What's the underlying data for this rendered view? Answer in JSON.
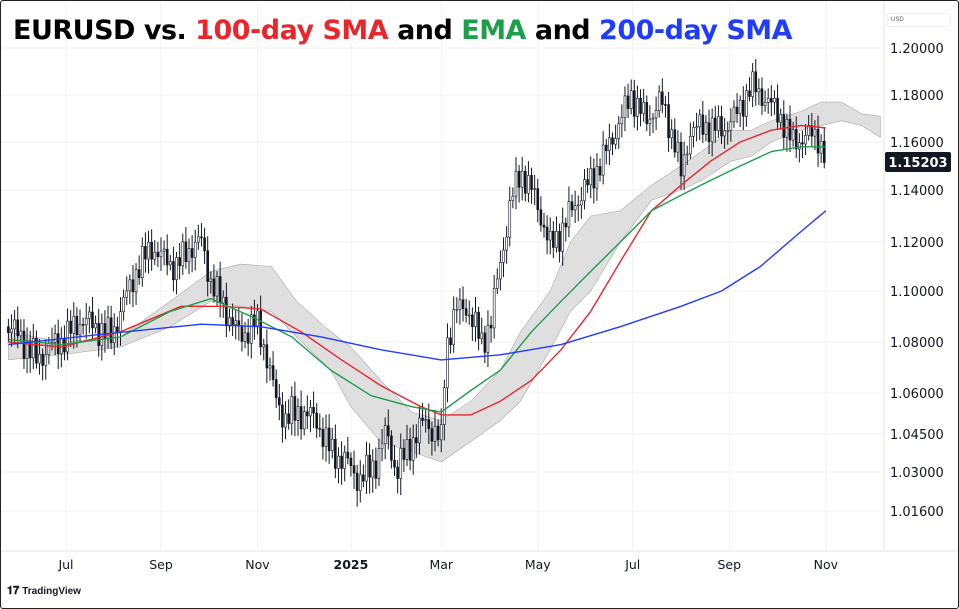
{
  "title": {
    "symbol": "EURUSD vs. ",
    "sma100": "100-day SMA",
    "and1": " and ",
    "ema": "EMA",
    "and2": " and ",
    "sma200": "200-day SMA"
  },
  "colors": {
    "sma100": "#e8262b",
    "ema": "#1e9e4a",
    "sma200": "#1f3cff",
    "cloud": "#d9d9d9",
    "bar": "#131722",
    "price_label_bg": "#131722"
  },
  "branding": "TradingView",
  "currency_label": "USD",
  "chart_data": {
    "type": "line",
    "title": "EURUSD vs. 100-day SMA and EMA and 200-day SMA",
    "x_unit": "days since 2024-07-01",
    "xlim": [
      -37,
      525
    ],
    "y_ticks": [
      1.2,
      1.18,
      1.16,
      1.14,
      1.12,
      1.1,
      1.08,
      1.06,
      1.045,
      1.03,
      1.016
    ],
    "y_tick_labels": [
      "1.20000",
      "1.18000",
      "1.16000",
      "1.14000",
      "1.12000",
      "1.10000",
      "1.08000",
      "1.06000",
      "1.04500",
      "1.03000",
      "1.01600"
    ],
    "x_ticks": [
      {
        "label": "Jul",
        "day": 0
      },
      {
        "label": "Sep",
        "day": 61
      },
      {
        "label": "Nov",
        "day": 123
      },
      {
        "label": "2025",
        "day": 183
      },
      {
        "label": "Mar",
        "day": 241
      },
      {
        "label": "May",
        "day": 303
      },
      {
        "label": "Jul",
        "day": 364
      },
      {
        "label": "Sep",
        "day": 426
      },
      {
        "label": "Nov",
        "day": 488
      }
    ],
    "last_price": "1.15203",
    "price": [
      [
        -37,
        1.086
      ],
      [
        -29,
        1.082
      ],
      [
        -19,
        1.073
      ],
      [
        -10,
        1.078
      ],
      [
        0,
        1.082
      ],
      [
        10,
        1.089
      ],
      [
        19,
        1.086
      ],
      [
        29,
        1.082
      ],
      [
        35,
        1.092
      ],
      [
        45,
        1.108
      ],
      [
        55,
        1.118
      ],
      [
        61,
        1.114
      ],
      [
        71,
        1.11
      ],
      [
        80,
        1.118
      ],
      [
        87,
        1.12
      ],
      [
        93,
        1.104
      ],
      [
        103,
        1.092
      ],
      [
        112,
        1.082
      ],
      [
        122,
        1.088
      ],
      [
        128,
        1.077
      ],
      [
        135,
        1.057
      ],
      [
        141,
        1.051
      ],
      [
        151,
        1.053
      ],
      [
        161,
        1.05
      ],
      [
        170,
        1.038
      ],
      [
        180,
        1.034
      ],
      [
        189,
        1.027
      ],
      [
        199,
        1.034
      ],
      [
        206,
        1.046
      ],
      [
        212,
        1.03
      ],
      [
        222,
        1.042
      ],
      [
        231,
        1.05
      ],
      [
        241,
        1.042
      ],
      [
        244,
        1.078
      ],
      [
        250,
        1.092
      ],
      [
        257,
        1.094
      ],
      [
        267,
        1.08
      ],
      [
        273,
        1.088
      ],
      [
        279,
        1.112
      ],
      [
        286,
        1.136
      ],
      [
        292,
        1.148
      ],
      [
        302,
        1.136
      ],
      [
        311,
        1.118
      ],
      [
        318,
        1.124
      ],
      [
        328,
        1.136
      ],
      [
        337,
        1.144
      ],
      [
        347,
        1.156
      ],
      [
        356,
        1.169
      ],
      [
        363,
        1.18
      ],
      [
        373,
        1.169
      ],
      [
        382,
        1.178
      ],
      [
        392,
        1.158
      ],
      [
        395,
        1.146
      ],
      [
        401,
        1.165
      ],
      [
        411,
        1.167
      ],
      [
        421,
        1.165
      ],
      [
        430,
        1.171
      ],
      [
        440,
        1.184
      ],
      [
        450,
        1.178
      ],
      [
        459,
        1.171
      ],
      [
        466,
        1.16
      ],
      [
        475,
        1.162
      ],
      [
        482,
        1.164
      ],
      [
        488,
        1.152
      ]
    ],
    "series": [
      {
        "name": "100-day SMA",
        "color": "#e8262b",
        "points": [
          [
            -37,
            1.08
          ],
          [
            -3,
            1.078
          ],
          [
            35,
            1.084
          ],
          [
            74,
            1.094
          ],
          [
            100,
            1.094
          ],
          [
            125,
            1.093
          ],
          [
            151,
            1.084
          ],
          [
            177,
            1.073
          ],
          [
            202,
            1.063
          ],
          [
            228,
            1.055
          ],
          [
            241,
            1.052
          ],
          [
            260,
            1.052
          ],
          [
            279,
            1.057
          ],
          [
            299,
            1.065
          ],
          [
            318,
            1.077
          ],
          [
            337,
            1.092
          ],
          [
            356,
            1.112
          ],
          [
            376,
            1.132
          ],
          [
            395,
            1.142
          ],
          [
            414,
            1.152
          ],
          [
            433,
            1.16
          ],
          [
            453,
            1.165
          ],
          [
            472,
            1.167
          ],
          [
            488,
            1.166
          ]
        ]
      },
      {
        "name": "EMA",
        "color": "#1e9e4a",
        "points": [
          [
            -37,
            1.081
          ],
          [
            -3,
            1.079
          ],
          [
            35,
            1.082
          ],
          [
            67,
            1.092
          ],
          [
            93,
            1.097
          ],
          [
            119,
            1.09
          ],
          [
            145,
            1.082
          ],
          [
            170,
            1.069
          ],
          [
            196,
            1.059
          ],
          [
            222,
            1.055
          ],
          [
            241,
            1.053
          ],
          [
            260,
            1.061
          ],
          [
            279,
            1.069
          ],
          [
            299,
            1.084
          ],
          [
            318,
            1.096
          ],
          [
            337,
            1.108
          ],
          [
            356,
            1.12
          ],
          [
            376,
            1.132
          ],
          [
            395,
            1.138
          ],
          [
            414,
            1.144
          ],
          [
            433,
            1.15
          ],
          [
            453,
            1.156
          ],
          [
            472,
            1.158
          ],
          [
            488,
            1.158
          ]
        ]
      },
      {
        "name": "200-day SMA",
        "color": "#1f3cff",
        "points": [
          [
            -37,
            1.079
          ],
          [
            22,
            1.083
          ],
          [
            87,
            1.087
          ],
          [
            125,
            1.086
          ],
          [
            164,
            1.082
          ],
          [
            202,
            1.077
          ],
          [
            241,
            1.073
          ],
          [
            279,
            1.075
          ],
          [
            318,
            1.079
          ],
          [
            356,
            1.086
          ],
          [
            395,
            1.094
          ],
          [
            421,
            1.1
          ],
          [
            446,
            1.11
          ],
          [
            472,
            1.124
          ],
          [
            488,
            1.132
          ]
        ]
      }
    ],
    "cloud": [
      [
        -37,
        1.084,
        1.073
      ],
      [
        -3,
        1.08,
        1.075
      ],
      [
        35,
        1.082,
        1.078
      ],
      [
        67,
        1.096,
        1.086
      ],
      [
        93,
        1.108,
        1.096
      ],
      [
        112,
        1.111,
        1.094
      ],
      [
        132,
        1.11,
        1.092
      ],
      [
        148,
        1.096,
        1.082
      ],
      [
        170,
        1.084,
        1.069
      ],
      [
        183,
        1.078,
        1.055
      ],
      [
        202,
        1.065,
        1.042
      ],
      [
        222,
        1.053,
        1.038
      ],
      [
        241,
        1.05,
        1.034
      ],
      [
        260,
        1.057,
        1.042
      ],
      [
        279,
        1.069,
        1.05
      ],
      [
        292,
        1.084,
        1.057
      ],
      [
        311,
        1.1,
        1.077
      ],
      [
        324,
        1.12,
        1.092
      ],
      [
        337,
        1.13,
        1.1
      ],
      [
        356,
        1.132,
        1.12
      ],
      [
        376,
        1.142,
        1.136
      ],
      [
        395,
        1.15,
        1.14
      ],
      [
        408,
        1.156,
        1.144
      ],
      [
        427,
        1.165,
        1.152
      ],
      [
        440,
        1.165,
        1.154
      ],
      [
        453,
        1.169,
        1.16
      ],
      [
        472,
        1.173,
        1.165
      ],
      [
        485,
        1.177,
        1.167
      ],
      [
        498,
        1.177,
        1.169
      ],
      [
        511,
        1.172,
        1.167
      ],
      [
        523,
        1.171,
        1.162
      ]
    ]
  }
}
